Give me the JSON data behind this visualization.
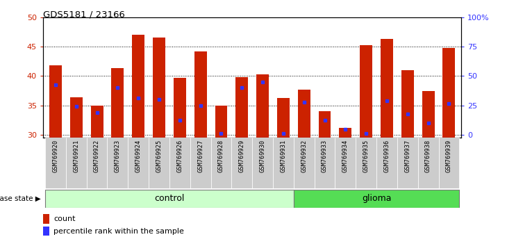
{
  "title": "GDS5181 / 23166",
  "samples": [
    "GSM769920",
    "GSM769921",
    "GSM769922",
    "GSM769923",
    "GSM769924",
    "GSM769925",
    "GSM769926",
    "GSM769927",
    "GSM769928",
    "GSM769929",
    "GSM769930",
    "GSM769931",
    "GSM769932",
    "GSM769933",
    "GSM769934",
    "GSM769935",
    "GSM769936",
    "GSM769937",
    "GSM769938",
    "GSM769939"
  ],
  "bar_heights": [
    41.8,
    36.4,
    35.0,
    41.3,
    47.0,
    46.5,
    39.7,
    44.2,
    35.0,
    39.8,
    40.3,
    36.3,
    37.7,
    34.0,
    31.2,
    45.3,
    46.3,
    41.0,
    37.5,
    44.8
  ],
  "blue_dot_pos": [
    38.5,
    34.8,
    33.8,
    38.0,
    36.3,
    36.0,
    32.5,
    35.0,
    30.2,
    38.0,
    39.0,
    30.2,
    35.5,
    32.5,
    31.0,
    30.2,
    35.8,
    33.6,
    32.0,
    35.3
  ],
  "bar_color": "#cc2200",
  "dot_color": "#3333ff",
  "ymin": 29.5,
  "ymax": 50,
  "yticks": [
    30,
    35,
    40,
    45,
    50
  ],
  "control_count": 12,
  "glioma_count": 8,
  "control_label": "control",
  "glioma_label": "glioma",
  "disease_state_label": "disease state",
  "legend_count_label": "count",
  "legend_pct_label": "percentile rank within the sample",
  "bar_color_red": "#cc2200",
  "dot_color_blue": "#3333ff",
  "control_bg": "#ccffcc",
  "glioma_bg": "#55dd55",
  "tick_bg": "#cccccc",
  "right_tick_positions": [
    30.0,
    35.0,
    40.0,
    45.0,
    50.0
  ],
  "right_tick_labels": [
    "0",
    "25",
    "50",
    "75",
    "100%"
  ]
}
